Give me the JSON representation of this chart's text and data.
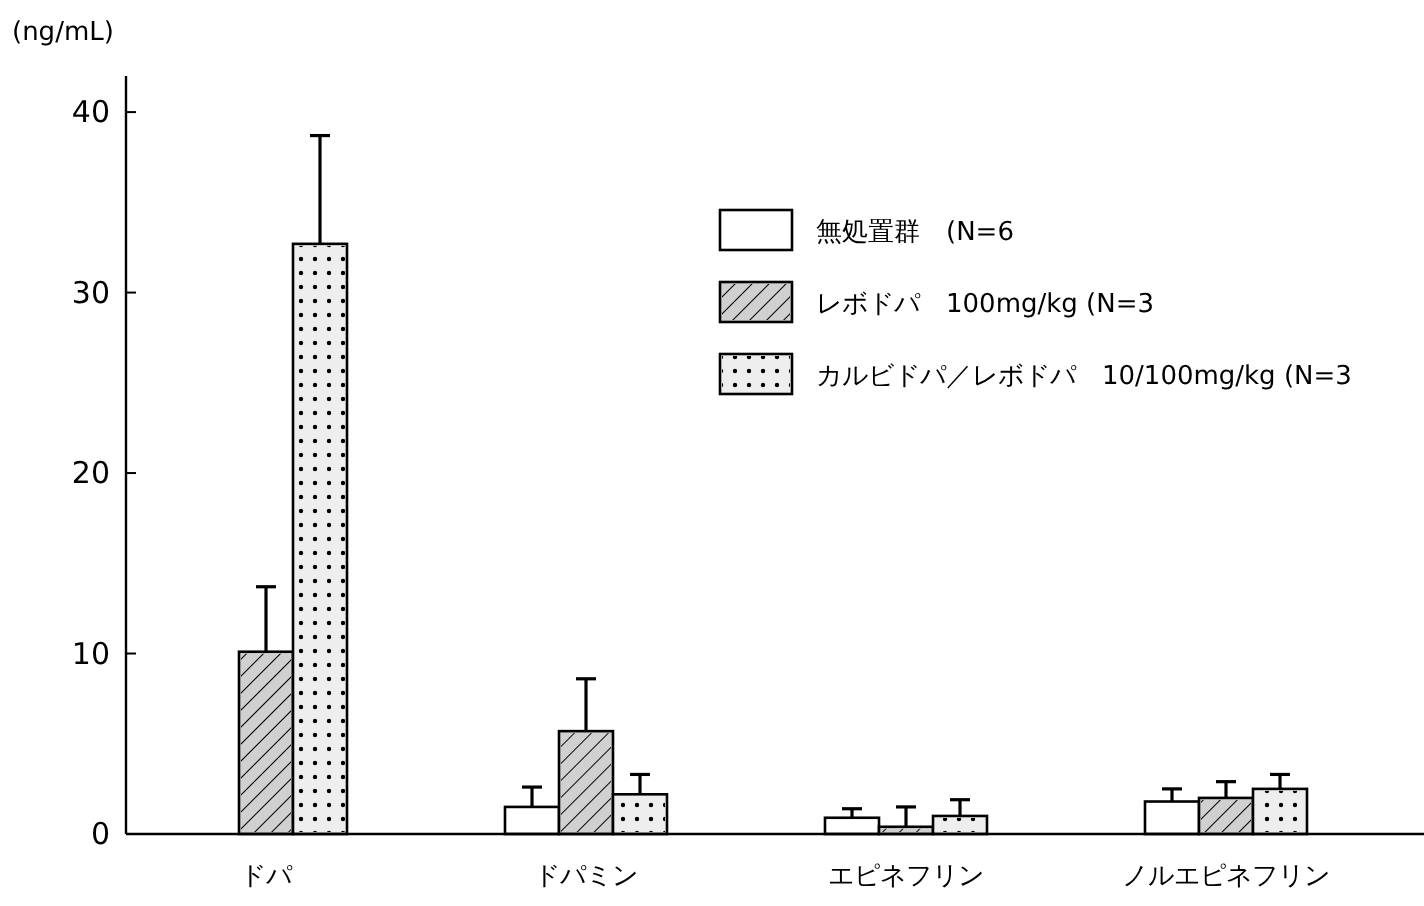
{
  "chart_data": {
    "type": "bar",
    "ylabel": "(ng/mL)",
    "categories": [
      "ドパ",
      "ドパミン",
      "エピネフリン",
      "ノルエピネフリン"
    ],
    "series": [
      {
        "name": "無処置群　(N=6",
        "color": "#ffffff",
        "values": [
          null,
          1.5,
          0.9,
          1.8
        ],
        "errors": [
          null,
          [
            1.5,
            2.6
          ],
          [
            0.9,
            1.4
          ],
          [
            1.8,
            2.5
          ]
        ]
      },
      {
        "name": "レボドパ　100mg/kg (N=3",
        "color": "#d0d0d0",
        "values": [
          10.1,
          5.7,
          0.4,
          2.0
        ],
        "errors": [
          [
            10.1,
            13.7
          ],
          [
            5.7,
            8.6
          ],
          [
            0.4,
            1.5
          ],
          [
            2.0,
            2.9
          ]
        ]
      },
      {
        "name": "カルビドパ／レボドパ　10/100mg/kg (N=3",
        "color": "#eeeeee",
        "values": [
          32.7,
          2.2,
          1.0,
          2.5
        ],
        "errors": [
          [
            32.7,
            38.7
          ],
          [
            2.2,
            3.3
          ],
          [
            1.0,
            1.9
          ],
          [
            2.5,
            3.3
          ]
        ]
      }
    ],
    "ylim": [
      0,
      42
    ],
    "yticks": [
      0,
      10,
      20,
      30,
      40
    ],
    "grid": false,
    "legend": "top right"
  }
}
